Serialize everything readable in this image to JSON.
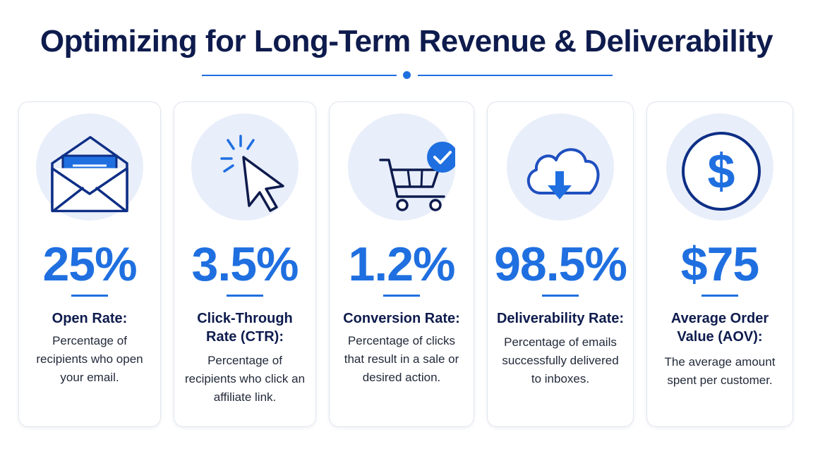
{
  "header": {
    "title": "Optimizing for Long-Term Revenue & Deliverability"
  },
  "colors": {
    "accent": "#1f6fe0",
    "title_navy": "#0e1b4d",
    "icon_bg": "#e8eefa"
  },
  "metrics": [
    {
      "icon": "open-envelope-icon",
      "value": "25%",
      "label": "Open Rate:",
      "description": "Percentage of recipients who open your email."
    },
    {
      "icon": "cursor-click-icon",
      "value": "3.5%",
      "label": "Click-Through Rate (CTR):",
      "description": "Percentage of recipients who click an affiliate link."
    },
    {
      "icon": "shopping-cart-check-icon",
      "value": "1.2%",
      "label": "Conversion Rate:",
      "description": "Percentage of clicks that result in a sale or desired action."
    },
    {
      "icon": "cloud-download-icon",
      "value": "98.5%",
      "label": "Deliverability Rate:",
      "description": "Percentage of emails successfully delivered to inboxes."
    },
    {
      "icon": "dollar-coin-icon",
      "value": "$75",
      "label": "Average Order Value (AOV):",
      "description": "The average amount spent per customer."
    }
  ]
}
